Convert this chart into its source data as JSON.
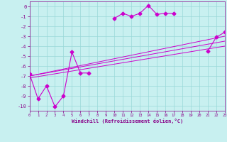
{
  "xlabel": "Windchill (Refroidissement éolien,°C)",
  "background_color": "#c8f0f0",
  "grid_color": "#99d9d9",
  "line_color": "#cc00cc",
  "x_data": [
    0,
    1,
    2,
    3,
    4,
    5,
    6,
    7,
    10,
    11,
    12,
    13,
    14,
    15,
    16,
    17,
    21,
    22,
    23
  ],
  "y_data": [
    -6.8,
    -9.3,
    -8.0,
    -10.1,
    -9.0,
    -4.6,
    -6.7,
    -6.7,
    -1.2,
    -0.7,
    -1.0,
    -0.7,
    0.1,
    -0.8,
    -0.7,
    -0.7,
    -4.5,
    -3.1,
    -2.6
  ],
  "segments": [
    [
      0,
      1,
      2,
      3,
      4,
      5,
      6,
      7
    ],
    [
      10,
      11,
      12,
      13,
      14,
      15,
      16,
      17
    ],
    [
      21,
      22,
      23
    ]
  ],
  "line1_x": [
    0,
    23
  ],
  "line1_y": [
    -7.0,
    -3.0
  ],
  "line2_x": [
    0,
    23
  ],
  "line2_y": [
    -7.0,
    -3.5
  ],
  "line3_x": [
    0,
    23
  ],
  "line3_y": [
    -7.2,
    -4.0
  ],
  "xlim": [
    0,
    23
  ],
  "ylim": [
    -10.5,
    0.5
  ],
  "yticks": [
    0,
    -1,
    -2,
    -3,
    -4,
    -5,
    -6,
    -7,
    -8,
    -9,
    -10
  ],
  "xticks": [
    0,
    1,
    2,
    3,
    4,
    5,
    6,
    7,
    8,
    9,
    10,
    11,
    12,
    13,
    14,
    15,
    16,
    17,
    18,
    19,
    20,
    21,
    22,
    23
  ]
}
